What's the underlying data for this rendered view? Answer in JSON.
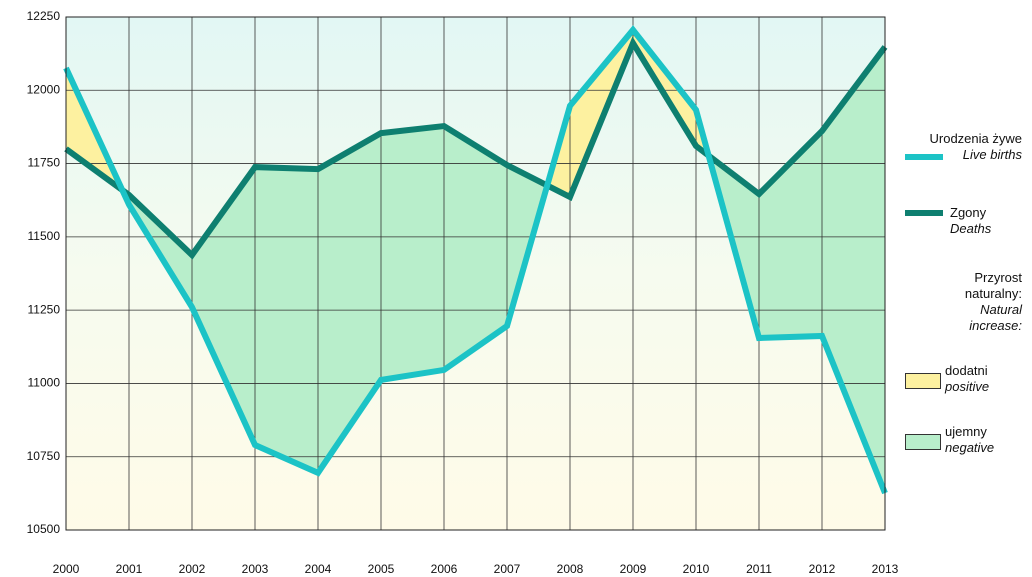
{
  "chart_data": {
    "type": "line",
    "x": [
      2000,
      2001,
      2002,
      2003,
      2004,
      2005,
      2006,
      2007,
      2008,
      2009,
      2010,
      2011,
      2012,
      2013
    ],
    "xlim": [
      2000,
      2013
    ],
    "xticks": [
      2000,
      2001,
      2002,
      2003,
      2004,
      2005,
      2006,
      2007,
      2008,
      2009,
      2010,
      2011,
      2012,
      2013
    ],
    "ylim": [
      10500,
      12250
    ],
    "yticks": [
      10500,
      10750,
      11000,
      11250,
      11500,
      11750,
      12000,
      12250
    ],
    "grid": true,
    "series": [
      {
        "name": "Urodzenia żywe",
        "name_en": "Live births",
        "color": "#1cc3c6",
        "values": [
          12076,
          11610,
          11260,
          10790,
          10695,
          11012,
          11046,
          11196,
          11947,
          12206,
          11933,
          11155,
          11162,
          10626
        ]
      },
      {
        "name": "Zgony",
        "name_en": "Deaths",
        "color": "#0e7f70",
        "values": [
          11800,
          11643,
          11438,
          11738,
          11731,
          11854,
          11878,
          11745,
          11636,
          12161,
          11810,
          11646,
          11861,
          12148
        ]
      }
    ],
    "fill_title": "Przyrost naturalny:",
    "fill_title_en": "Natural increase:",
    "fills": [
      {
        "name": "dodatni",
        "name_en": "positive",
        "color": "#fdf1a0"
      },
      {
        "name": "ujemny",
        "name_en": "negative",
        "color": "#b8eecb"
      }
    ]
  }
}
